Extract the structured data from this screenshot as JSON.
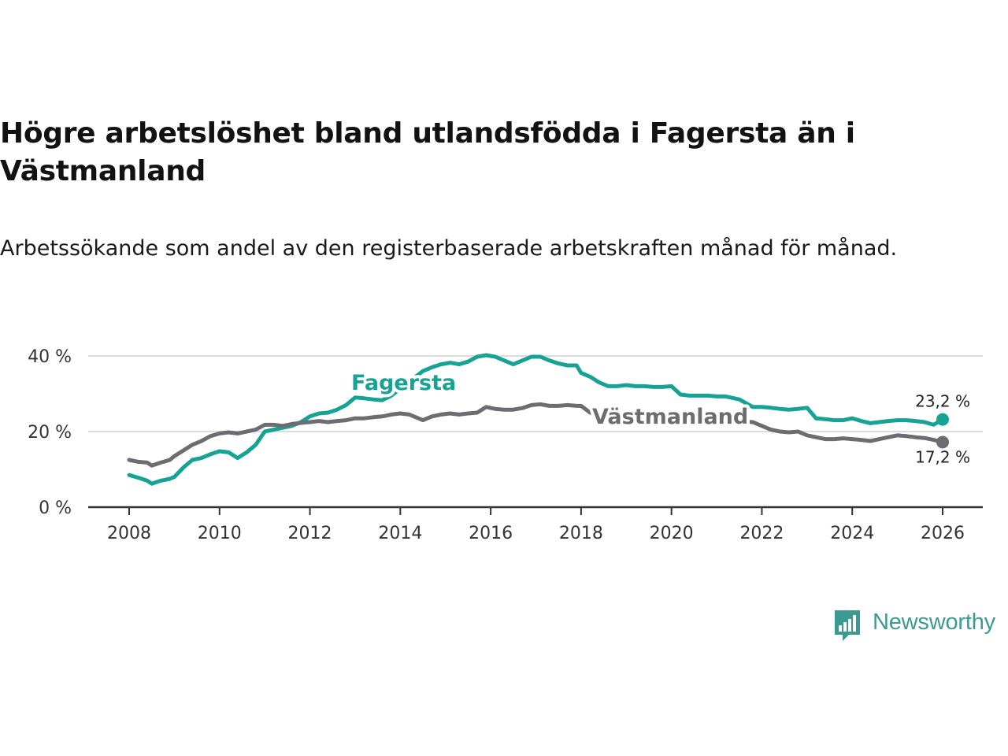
{
  "title": "Högre arbetslöshet bland utlandsfödda i Fagersta än i Västmanland",
  "subtitle": "Arbetssökande som andel av den registerbaserade arbetskraften månad för månad.",
  "brand": "Newsworthy",
  "colors": {
    "fagersta": "#16a393",
    "vastmanland": "#6c6c73",
    "grid": "#dddddd",
    "axis": "#333333",
    "brand": "#3d9a91"
  },
  "chart_data": {
    "type": "line",
    "title": "Högre arbetslöshet bland utlandsfödda i Fagersta än i Västmanland",
    "xlabel": "",
    "ylabel": "",
    "xlim": [
      2007.2,
      2027.0
    ],
    "ylim": [
      0,
      42
    ],
    "yticks": [
      0,
      20,
      40
    ],
    "ytick_labels": [
      "0 %",
      "20 %",
      "40 %"
    ],
    "xticks": [
      2008,
      2010,
      2012,
      2014,
      2016,
      2018,
      2020,
      2022,
      2024,
      2026
    ],
    "xtick_labels": [
      "2008",
      "2010",
      "2012",
      "2014",
      "2016",
      "2018",
      "2020",
      "2022",
      "2024",
      "2026"
    ],
    "grid": true,
    "series": [
      {
        "name": "Fagersta",
        "end_label": "23,2 %",
        "x": [
          2008.0,
          2008.2,
          2008.4,
          2008.5,
          2008.7,
          2008.9,
          2009.0,
          2009.2,
          2009.4,
          2009.6,
          2009.8,
          2010.0,
          2010.2,
          2010.4,
          2010.6,
          2010.8,
          2011.0,
          2011.2,
          2011.4,
          2011.6,
          2011.8,
          2012.0,
          2012.2,
          2012.4,
          2012.6,
          2012.8,
          2013.0,
          2013.2,
          2013.4,
          2013.6,
          2013.8,
          2014.5,
          2014.7,
          2014.9,
          2015.1,
          2015.3,
          2015.5,
          2015.7,
          2015.9,
          2016.1,
          2016.3,
          2016.5,
          2016.7,
          2016.9,
          2017.1,
          2017.3,
          2017.5,
          2017.7,
          2017.9,
          2018.0,
          2018.2,
          2018.4,
          2018.6,
          2018.8,
          2019.0,
          2019.2,
          2019.4,
          2019.6,
          2019.8,
          2020.0,
          2020.2,
          2020.4,
          2020.6,
          2020.8,
          2021.0,
          2021.2,
          2021.5,
          2021.8,
          2022.0,
          2022.2,
          2022.4,
          2022.6,
          2022.8,
          2023.0,
          2023.2,
          2023.4,
          2023.6,
          2023.8,
          2024.0,
          2024.2,
          2024.4,
          2024.6,
          2024.8,
          2025.0,
          2025.2,
          2025.4,
          2025.6,
          2025.8,
          2026.0
        ],
        "y": [
          8.5,
          7.8,
          7.0,
          6.2,
          7.0,
          7.5,
          8.0,
          10.5,
          12.5,
          13.0,
          14.0,
          14.8,
          14.5,
          13.0,
          14.5,
          16.5,
          20.0,
          20.5,
          21.0,
          21.5,
          22.5,
          24.0,
          24.8,
          25.0,
          25.8,
          27.0,
          29.0,
          28.8,
          28.5,
          28.3,
          29.5,
          36.0,
          37.0,
          37.8,
          38.2,
          37.8,
          38.5,
          39.8,
          40.2,
          39.8,
          38.8,
          37.8,
          38.8,
          39.8,
          39.8,
          38.8,
          38.0,
          37.5,
          37.5,
          35.5,
          34.5,
          33.0,
          32.0,
          32.0,
          32.3,
          32.0,
          32.0,
          31.8,
          31.8,
          32.0,
          29.8,
          29.5,
          29.5,
          29.5,
          29.3,
          29.3,
          28.5,
          26.5,
          26.5,
          26.3,
          26.0,
          25.8,
          26.0,
          26.3,
          23.5,
          23.3,
          23.0,
          23.0,
          23.5,
          22.8,
          22.2,
          22.5,
          22.8,
          23.0,
          23.0,
          22.8,
          22.5,
          21.8,
          23.2
        ]
      },
      {
        "name": "Västmanland",
        "end_label": "17,2 %",
        "x": [
          2008.0,
          2008.2,
          2008.4,
          2008.5,
          2008.7,
          2008.9,
          2009.0,
          2009.2,
          2009.4,
          2009.6,
          2009.8,
          2010.0,
          2010.2,
          2010.4,
          2010.6,
          2010.8,
          2011.0,
          2011.2,
          2011.4,
          2011.6,
          2011.8,
          2012.0,
          2012.2,
          2012.4,
          2012.6,
          2012.8,
          2013.0,
          2013.2,
          2013.4,
          2013.6,
          2013.8,
          2014.0,
          2014.2,
          2014.4,
          2014.5,
          2014.7,
          2014.9,
          2015.1,
          2015.3,
          2015.5,
          2015.7,
          2015.9,
          2016.1,
          2016.3,
          2016.5,
          2016.7,
          2016.9,
          2017.1,
          2017.3,
          2017.5,
          2017.7,
          2017.9,
          2018.0,
          2018.2,
          2021.8,
          2022.0,
          2022.2,
          2022.4,
          2022.6,
          2022.8,
          2023.0,
          2023.2,
          2023.4,
          2023.6,
          2023.8,
          2024.0,
          2024.2,
          2024.4,
          2024.6,
          2024.8,
          2025.0,
          2025.2,
          2025.4,
          2025.6,
          2025.8,
          2026.0
        ],
        "y": [
          12.5,
          12.0,
          11.8,
          11.0,
          11.8,
          12.5,
          13.5,
          15.0,
          16.5,
          17.5,
          18.8,
          19.5,
          19.8,
          19.5,
          20.0,
          20.5,
          21.8,
          21.8,
          21.5,
          22.0,
          22.3,
          22.5,
          22.8,
          22.5,
          22.8,
          23.0,
          23.5,
          23.5,
          23.8,
          24.0,
          24.5,
          24.8,
          24.5,
          23.5,
          23.0,
          24.0,
          24.5,
          24.8,
          24.5,
          24.8,
          25.0,
          26.5,
          26.0,
          25.8,
          25.8,
          26.2,
          27.0,
          27.2,
          26.8,
          26.8,
          27.0,
          26.8,
          26.8,
          25.0,
          22.5,
          21.5,
          20.5,
          20.0,
          19.8,
          20.0,
          19.0,
          18.5,
          18.0,
          18.0,
          18.2,
          18.0,
          17.8,
          17.5,
          18.0,
          18.5,
          19.0,
          18.8,
          18.5,
          18.3,
          17.8,
          17.2
        ]
      }
    ]
  }
}
